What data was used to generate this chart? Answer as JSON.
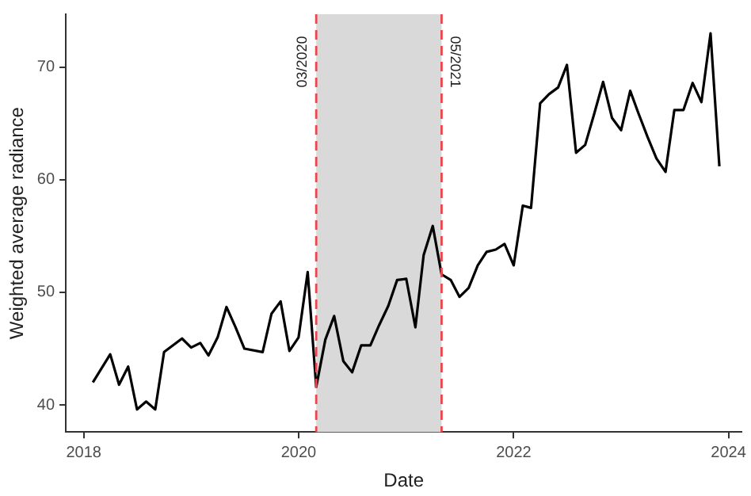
{
  "chart_data": {
    "type": "line",
    "xlabel": "Date",
    "ylabel": "Weighted average radiance",
    "x": [
      "2018-02",
      "2018-04",
      "2018-05",
      "2018-06",
      "2018-07",
      "2018-08",
      "2018-09",
      "2018-10",
      "2018-12",
      "2019-01",
      "2019-02",
      "2019-03",
      "2019-04",
      "2019-05",
      "2019-06",
      "2019-07",
      "2019-09",
      "2019-10",
      "2019-11",
      "2019-12",
      "2020-01",
      "2020-02",
      "2020-03",
      "2020-04",
      "2020-05",
      "2020-06",
      "2020-07",
      "2020-08",
      "2020-09",
      "2020-10",
      "2020-11",
      "2020-12",
      "2021-01",
      "2021-02",
      "2021-03",
      "2021-04",
      "2021-05",
      "2021-06",
      "2021-07",
      "2021-08",
      "2021-09",
      "2021-10",
      "2021-11",
      "2021-12",
      "2022-01",
      "2022-02",
      "2022-03",
      "2022-04",
      "2022-05",
      "2022-06",
      "2022-07",
      "2022-08",
      "2022-09",
      "2022-10",
      "2022-11",
      "2022-12",
      "2023-01",
      "2023-02",
      "2023-03",
      "2023-04",
      "2023-05",
      "2023-06",
      "2023-07",
      "2023-08",
      "2023-09",
      "2023-10",
      "2023-11",
      "2023-12"
    ],
    "series": [
      {
        "color": "#000000",
        "values": [
          42.0,
          44.5,
          41.8,
          43.4,
          39.6,
          40.3,
          39.6,
          44.7,
          45.9,
          45.1,
          45.5,
          44.4,
          46.0,
          48.7,
          46.9,
          45.0,
          44.7,
          48.1,
          49.2,
          44.8,
          46.0,
          51.8,
          41.6,
          45.8,
          47.9,
          43.9,
          42.9,
          45.3,
          45.3,
          47.1,
          48.8,
          51.1,
          51.2,
          46.9,
          53.3,
          55.9,
          51.6,
          51.1,
          49.6,
          50.4,
          52.4,
          53.6,
          53.8,
          54.3,
          52.4,
          57.7,
          57.5,
          66.8,
          67.6,
          68.2,
          70.2,
          62.4,
          63.1,
          65.8,
          68.7,
          65.5,
          64.4,
          67.9,
          65.9,
          63.8,
          61.9,
          60.7,
          66.2,
          66.2,
          68.6,
          66.9,
          73.0,
          61.2
        ]
      }
    ],
    "xlim": [
      "2017-11-01",
      "2024-02-15"
    ],
    "xticks": [
      "2018",
      "2020",
      "2022",
      "2024"
    ],
    "ylim": [
      37.6,
      74.7
    ],
    "yticks": [
      40,
      50,
      60,
      70
    ],
    "ref_lines": [
      {
        "axis": "x",
        "value": "2020-03",
        "label": "03/2020",
        "color": "#e8474f",
        "line_style": "dashed"
      },
      {
        "axis": "x",
        "value": "2021-05",
        "label": "05/2021",
        "color": "#e8474f",
        "line_style": "dashed"
      }
    ],
    "bands": [
      {
        "axis": "x",
        "from": "2020-03",
        "to": "2021-05",
        "color": "#d9d9d9"
      }
    ],
    "grid": false,
    "legend": false,
    "marker": "none",
    "line_style": "solid"
  }
}
